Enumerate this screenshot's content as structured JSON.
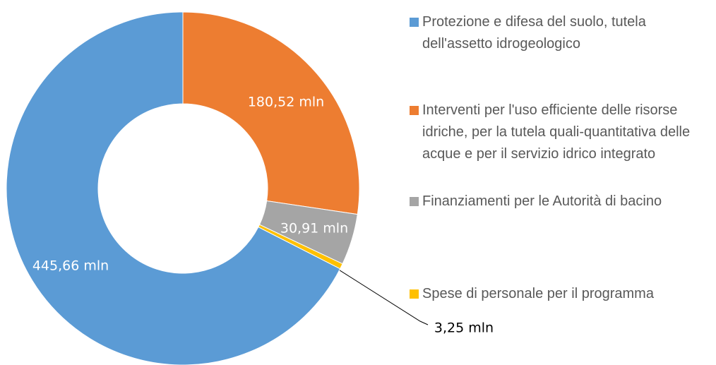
{
  "chart_data": {
    "type": "donut",
    "categories": [
      "Protezione e difesa del suolo, tutela dell'assetto idrogeologico",
      "Interventi per l'uso efficiente delle risorse idriche, per la tutela quali-quantitativa delle acque e per il servizio idrico integrato",
      "Finanziamenti per le Autorità di bacino",
      "Spese di personale per il programma"
    ],
    "values": [
      445.66,
      180.52,
      30.91,
      3.25
    ],
    "value_labels": [
      "445,66 mln",
      "180,52 mln",
      "30,91 mln",
      "3,25 mln"
    ],
    "colors": [
      "#5b9bd5",
      "#ed7d31",
      "#a5a5a5",
      "#ffc000"
    ]
  }
}
